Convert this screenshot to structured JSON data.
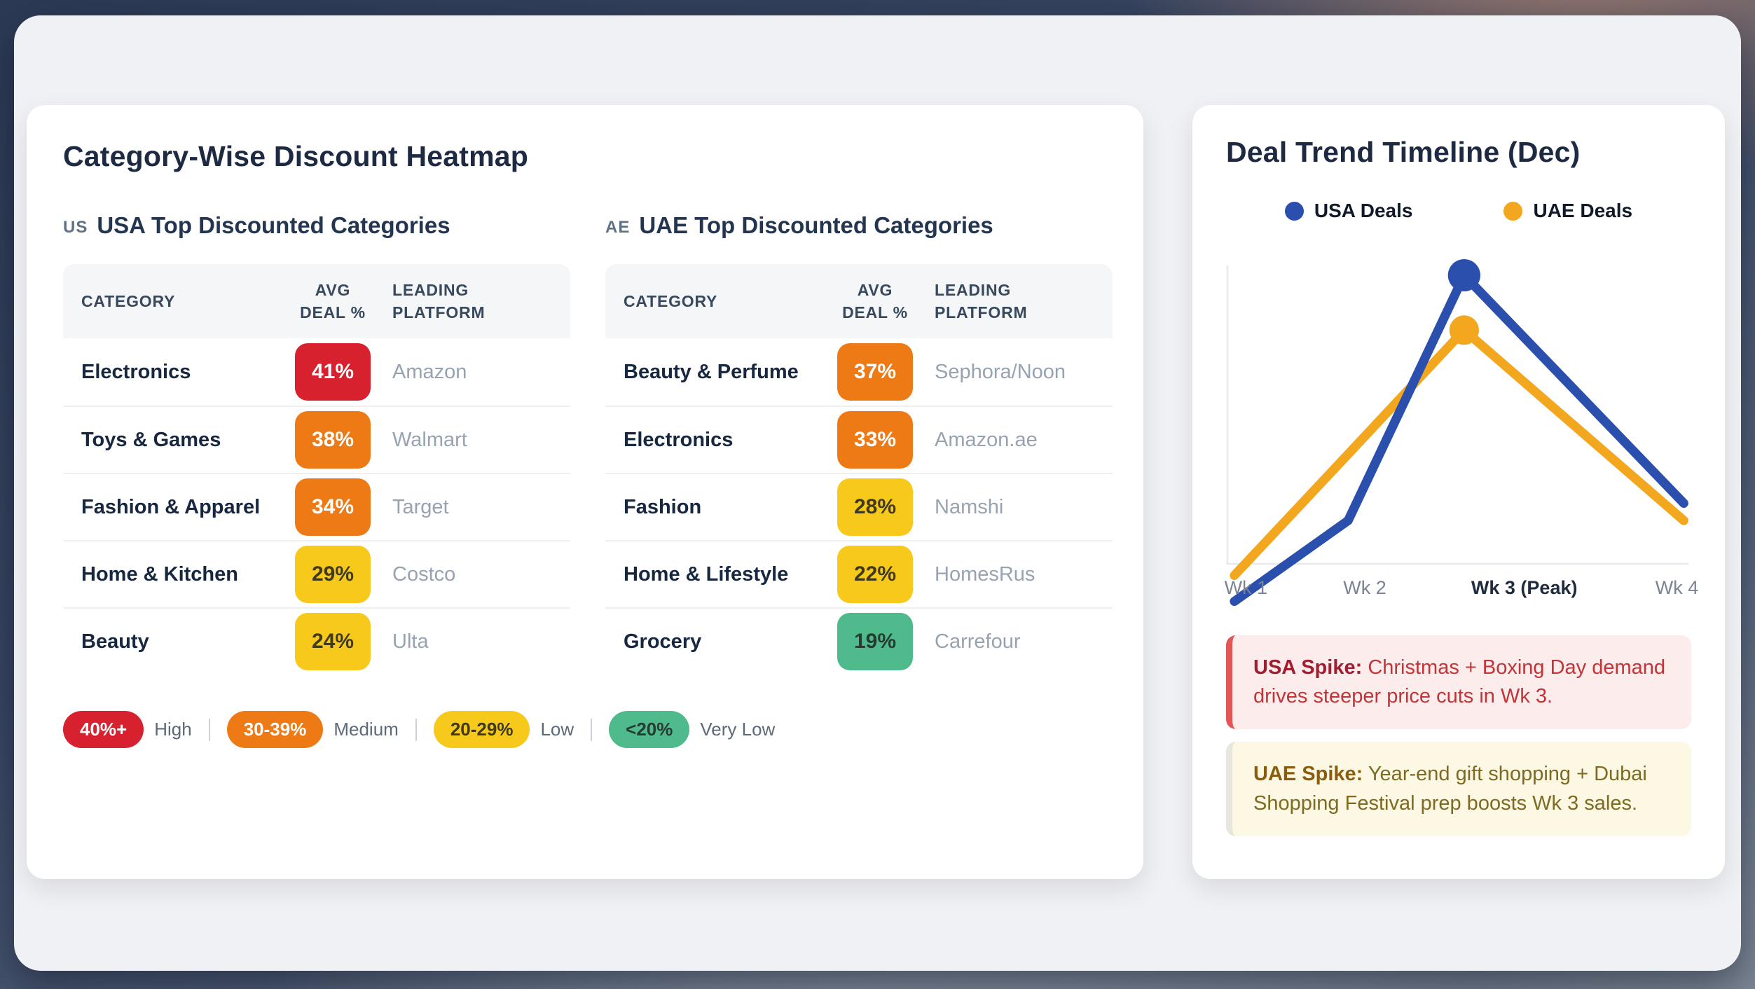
{
  "heatmap_card": {
    "title": "Category-Wise Discount Heatmap",
    "tables": [
      {
        "flag": "US",
        "title": "USA Top Discounted Categories",
        "headers": [
          "CATEGORY",
          "AVG DEAL %",
          "LEADING PLATFORM"
        ],
        "rows": [
          {
            "category": "Electronics",
            "deal": "41%",
            "level": "high",
            "platform": "Amazon"
          },
          {
            "category": "Toys & Games",
            "deal": "38%",
            "level": "medium",
            "platform": "Walmart"
          },
          {
            "category": "Fashion & Apparel",
            "deal": "34%",
            "level": "medium",
            "platform": "Target"
          },
          {
            "category": "Home & Kitchen",
            "deal": "29%",
            "level": "low",
            "platform": "Costco"
          },
          {
            "category": "Beauty",
            "deal": "24%",
            "level": "low",
            "platform": "Ulta"
          }
        ]
      },
      {
        "flag": "AE",
        "title": "UAE Top Discounted Categories",
        "headers": [
          "CATEGORY",
          "AVG DEAL %",
          "LEADING PLATFORM"
        ],
        "rows": [
          {
            "category": "Beauty & Perfume",
            "deal": "37%",
            "level": "medium",
            "platform": "Sephora/Noon"
          },
          {
            "category": "Electronics",
            "deal": "33%",
            "level": "medium",
            "platform": "Amazon.ae"
          },
          {
            "category": "Fashion",
            "deal": "28%",
            "level": "low",
            "platform": "Namshi"
          },
          {
            "category": "Home & Lifestyle",
            "deal": "22%",
            "level": "low",
            "platform": "HomesRus"
          },
          {
            "category": "Grocery",
            "deal": "19%",
            "level": "very_low",
            "platform": "Carrefour"
          }
        ]
      }
    ],
    "legend": [
      {
        "range": "40%+",
        "label": "High",
        "level": "high"
      },
      {
        "range": "30-39%",
        "label": "Medium",
        "level": "medium"
      },
      {
        "range": "20-29%",
        "label": "Low",
        "level": "low"
      },
      {
        "range": "<20%",
        "label": "Very Low",
        "level": "very_low"
      }
    ],
    "level_colors": {
      "high": "#d7212e",
      "medium": "#ee7a16",
      "low": "#f6c91a",
      "very_low": "#4fba8c"
    }
  },
  "trend_card": {
    "title": "Deal Trend Timeline (Dec)",
    "legend": [
      {
        "label": "USA Deals",
        "color": "#2b4fad"
      },
      {
        "label": "UAE Deals",
        "color": "#f2a71f"
      }
    ],
    "callouts": [
      {
        "title": "USA Spike:",
        "text": "Christmas + Boxing Day demand drives steeper price cuts in Wk 3.",
        "bg": "#fdecec",
        "border": "#e15656",
        "title_color": "#a11d30",
        "text_color": "#c13438"
      },
      {
        "title": "UAE Spike:",
        "text": "Year-end gift shopping + Dubai Shopping Festival prep boosts Wk 3 sales.",
        "bg": "#fcf8e4",
        "border": "#e7e6df",
        "title_color": "#8a5c0e",
        "text_color": "#7e6a20"
      }
    ]
  },
  "chart_data": {
    "type": "line",
    "title": "Deal Trend Timeline (Dec)",
    "x": [
      "Wk 1",
      "Wk 2",
      "Wk 3 (Peak)",
      "Wk 4"
    ],
    "series": [
      {
        "name": "USA Deals",
        "color": "#2b4fad",
        "values": [
          -13,
          15,
          100,
          21
        ],
        "peak_index": 2
      },
      {
        "name": "UAE Deals",
        "color": "#f2a71f",
        "values": [
          -4,
          38,
          81,
          15
        ],
        "peak_index": 2
      }
    ],
    "xlabel": "",
    "ylabel": "",
    "ylim": [
      -15,
      105
    ],
    "grid": false,
    "legend_position": "top",
    "note": "Y-axis unlabeled; values are relative deal intensity read from line heights (baseline = 0, USA peak = 100). Peak markers drawn at Wk 3 only."
  }
}
